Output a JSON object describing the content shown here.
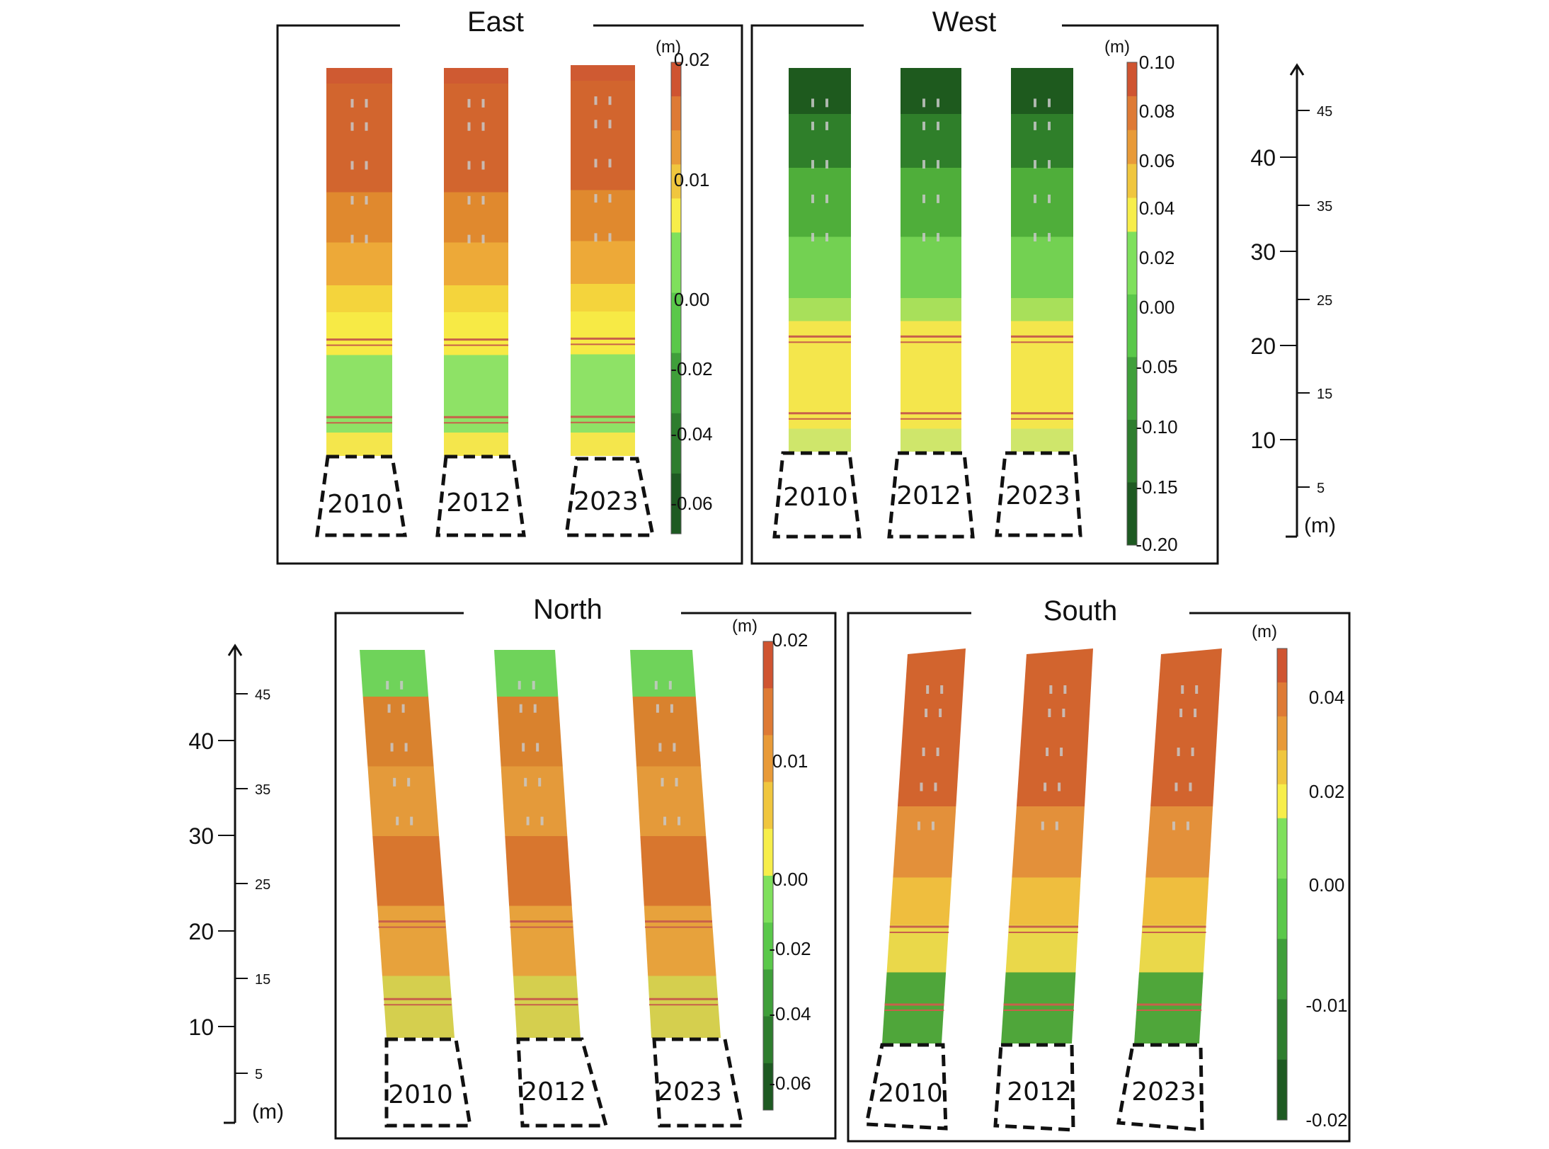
{
  "figure": {
    "panels": [
      {
        "id": "east",
        "title": "East",
        "unit": "(m)",
        "years": [
          "2010",
          "2012",
          "2023"
        ],
        "colorbar": {
          "ticks": [
            "0.02",
            "0.01",
            "0.00",
            "-0.02",
            "-0.04",
            "-0.06"
          ],
          "positive_max": 0.02,
          "negative_min": -0.06
        },
        "strip_profile": [
          {
            "from": 0.0,
            "to": 0.04,
            "color": "#cf5a32"
          },
          {
            "from": 0.04,
            "to": 0.32,
            "color": "#d2652e"
          },
          {
            "from": 0.32,
            "to": 0.45,
            "color": "#e0892e"
          },
          {
            "from": 0.45,
            "to": 0.56,
            "color": "#eda938"
          },
          {
            "from": 0.56,
            "to": 0.63,
            "color": "#f4d43c"
          },
          {
            "from": 0.63,
            "to": 0.74,
            "color": "#f7ea45"
          },
          {
            "from": 0.74,
            "to": 0.94,
            "color": "#8ee266"
          },
          {
            "from": 0.94,
            "to": 1.0,
            "color": "#f4e64c"
          }
        ]
      },
      {
        "id": "west",
        "title": "West",
        "unit": "(m)",
        "years": [
          "2010",
          "2012",
          "2023"
        ],
        "colorbar": {
          "ticks": [
            "0.10",
            "0.08",
            "0.06",
            "0.04",
            "0.02",
            "0.00",
            "-0.05",
            "-0.10",
            "-0.15",
            "-0.20"
          ],
          "positive_max": 0.1,
          "negative_min": -0.2
        },
        "strip_profile": [
          {
            "from": 0.0,
            "to": 0.12,
            "color": "#1e5a1e"
          },
          {
            "from": 0.12,
            "to": 0.26,
            "color": "#2f7f2a"
          },
          {
            "from": 0.26,
            "to": 0.44,
            "color": "#4fae3a"
          },
          {
            "from": 0.44,
            "to": 0.6,
            "color": "#73d152"
          },
          {
            "from": 0.6,
            "to": 0.66,
            "color": "#a8e05a"
          },
          {
            "from": 0.66,
            "to": 0.94,
            "color": "#f4e64c"
          },
          {
            "from": 0.94,
            "to": 1.0,
            "color": "#cfe66b"
          }
        ]
      },
      {
        "id": "north",
        "title": "North",
        "unit": "(m)",
        "years": [
          "2010",
          "2012",
          "2023"
        ],
        "colorbar": {
          "ticks": [
            "0.02",
            "0.01",
            "0.00",
            "-0.02",
            "-0.04",
            "-0.06"
          ],
          "positive_max": 0.02,
          "negative_min": -0.06
        },
        "strip_profile": [
          {
            "from": 0.0,
            "to": 0.12,
            "color": "#6fd35a"
          },
          {
            "from": 0.12,
            "to": 0.3,
            "color": "#d9822e"
          },
          {
            "from": 0.3,
            "to": 0.48,
            "color": "#e49a3a"
          },
          {
            "from": 0.48,
            "to": 0.66,
            "color": "#d8762e"
          },
          {
            "from": 0.66,
            "to": 0.84,
            "color": "#e7a23c"
          },
          {
            "from": 0.84,
            "to": 1.0,
            "color": "#d5cf4e"
          }
        ]
      },
      {
        "id": "south",
        "title": "South",
        "unit": "(m)",
        "years": [
          "2010",
          "2012",
          "2023"
        ],
        "colorbar": {
          "ticks": [
            "0.04",
            "0.02",
            "0.00",
            "-0.01",
            "-0.02"
          ],
          "positive_max": 0.05,
          "negative_min": -0.02
        },
        "strip_profile": [
          {
            "from": 0.0,
            "to": 0.4,
            "color": "#d2642e"
          },
          {
            "from": 0.4,
            "to": 0.58,
            "color": "#e3903a"
          },
          {
            "from": 0.58,
            "to": 0.7,
            "color": "#efbe3e"
          },
          {
            "from": 0.7,
            "to": 0.82,
            "color": "#ead84a"
          },
          {
            "from": 0.82,
            "to": 1.0,
            "color": "#4fa63a"
          }
        ]
      }
    ],
    "height_scales": [
      {
        "id": "top-right-scale",
        "unit": "(m)",
        "major": [
          "40",
          "30",
          "20",
          "10"
        ],
        "minor": [
          "45",
          "35",
          "25",
          "15",
          "5"
        ]
      },
      {
        "id": "bottom-left-scale",
        "unit": "(m)",
        "major": [
          "40",
          "30",
          "20",
          "10"
        ],
        "minor": [
          "45",
          "35",
          "25",
          "15",
          "5"
        ]
      }
    ],
    "colors": {
      "frame": "#111111",
      "gray_gap": "#c8c8c8",
      "fence": "#c8604a"
    },
    "colorbar_gradient": {
      "positive": [
        "#f7ee4a",
        "#f0c63e",
        "#e89a38",
        "#de7a35",
        "#cf5431"
      ],
      "negative": [
        "#7fe05c",
        "#5ac84a",
        "#3f9f3a",
        "#2e7d2e",
        "#1e5a22"
      ]
    }
  }
}
